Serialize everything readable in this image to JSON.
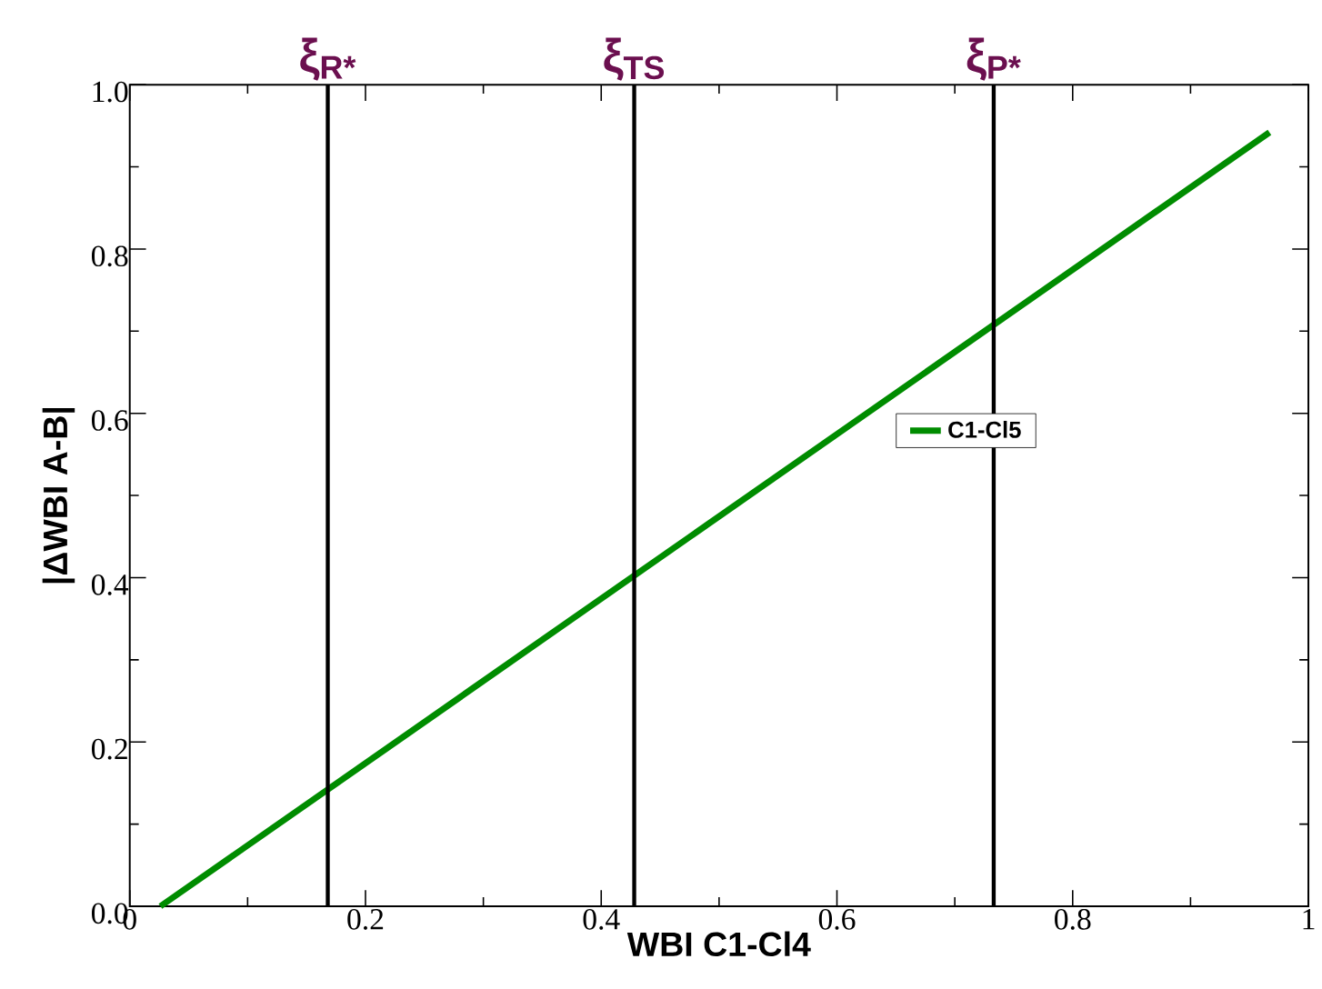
{
  "chart_data": {
    "type": "line",
    "xlabel": "WBI C1-Cl4",
    "ylabel": "|ΔWBI A-B|",
    "series": [
      {
        "name": "C1-Cl5",
        "color": "#008c00",
        "x": [
          0.026,
          0.967
        ],
        "values": [
          0,
          0.942
        ]
      }
    ],
    "xlim": [
      0,
      1
    ],
    "ylim": [
      0,
      1
    ],
    "xticks": [
      0,
      0.2,
      0.4,
      0.6,
      0.8,
      1
    ],
    "yticks": [
      {
        "value": 0,
        "label": "0.0"
      },
      {
        "value": 0.2,
        "label": "0.2"
      },
      {
        "value": 0.4,
        "label": "0.4"
      },
      {
        "value": 0.6,
        "label": "0.6"
      },
      {
        "value": 0.8,
        "label": "0.8"
      },
      {
        "value": 1,
        "label": "1.0"
      }
    ],
    "ref_lines": [
      {
        "axis": "x",
        "value": 0.168,
        "label": "ξ$_{R*}$",
        "color": "#000000"
      },
      {
        "axis": "x",
        "value": 0.428,
        "label": "ξ$_{TS}$",
        "color": "#000000"
      },
      {
        "axis": "x",
        "value": 0.733,
        "label": "ξ$_{P*}$",
        "color": "#000000"
      }
    ],
    "grid": false,
    "legend": "right",
    "marker": "none",
    "line_style": "solid"
  }
}
